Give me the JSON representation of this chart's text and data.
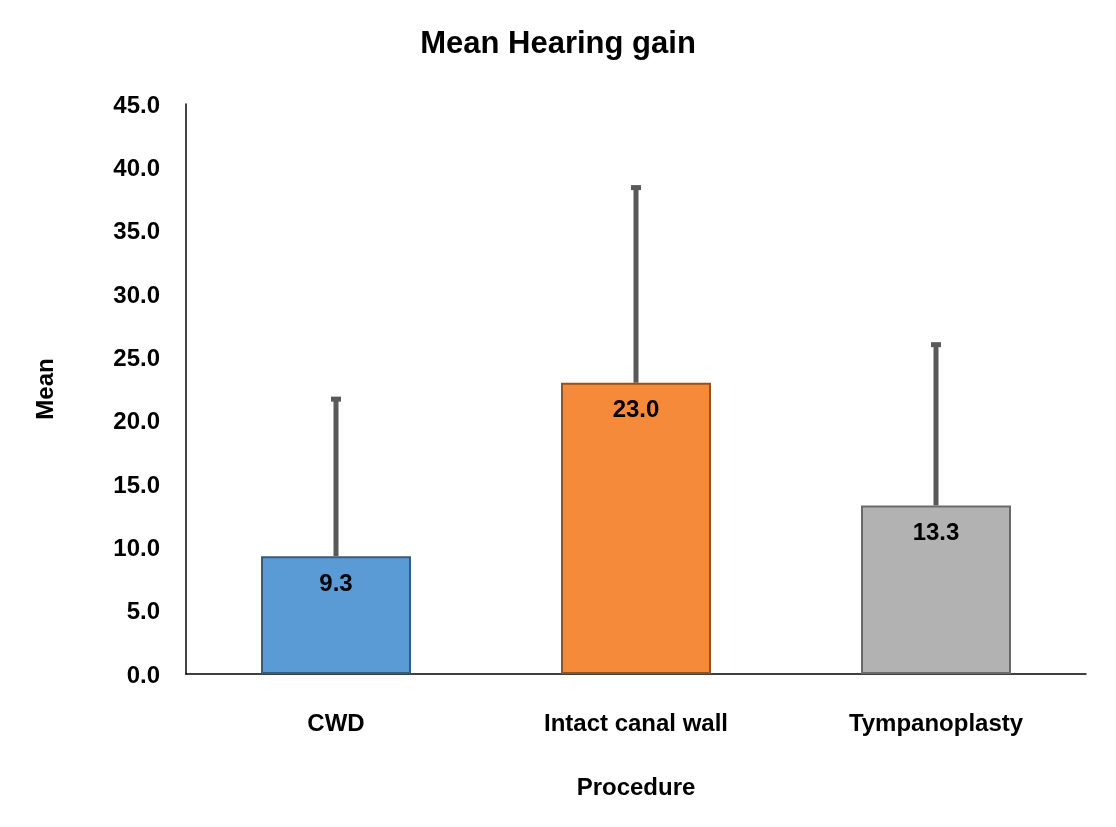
{
  "chart_data": {
    "type": "bar",
    "title": "Mean Hearing gain",
    "xlabel": "Procedure",
    "ylabel": "Mean",
    "categories": [
      "CWD",
      "Intact canal wall",
      "Tympanoplasty"
    ],
    "values": [
      9.3,
      23.0,
      13.3
    ],
    "colors": [
      "#5b9bd5",
      "#f58a3a",
      "#b2b2b2"
    ],
    "errors": [
      [
        9.3,
        21.7
      ],
      [
        23.0,
        38.4
      ],
      [
        13.3,
        26.0
      ]
    ],
    "value_labels": [
      "9.3",
      "23.0",
      "13.3"
    ],
    "grid": false,
    "ylim": [
      0,
      45
    ],
    "yticks": [
      {
        "value": 0,
        "label": "0.0"
      },
      {
        "value": 5,
        "label": "5.0"
      },
      {
        "value": 10,
        "label": "10.0"
      },
      {
        "value": 15,
        "label": "15.0"
      },
      {
        "value": 20,
        "label": "20.0"
      },
      {
        "value": 25,
        "label": "25.0"
      },
      {
        "value": 30,
        "label": "30.0"
      },
      {
        "value": 35,
        "label": "35.0"
      },
      {
        "value": 40,
        "label": "40.0"
      },
      {
        "value": 45,
        "label": "45.0"
      }
    ]
  }
}
